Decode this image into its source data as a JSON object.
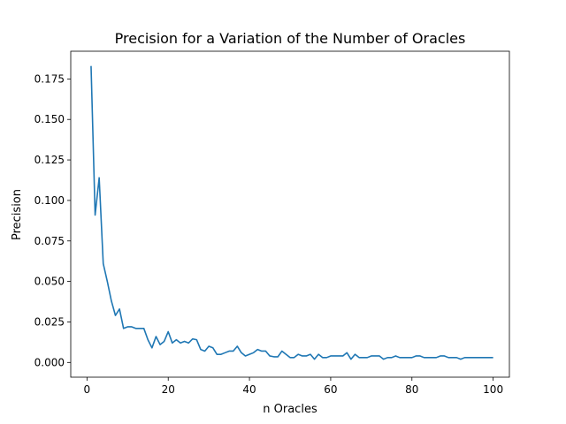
{
  "chart_data": {
    "type": "line",
    "title": "Precision for a Variation of the Number of Oracles",
    "xlabel": "n Oracles",
    "ylabel": "Precision",
    "xlim": [
      -4.0,
      104.0
    ],
    "ylim": [
      -0.0091,
      0.1921
    ],
    "xticks": [
      0,
      20,
      40,
      60,
      80,
      100
    ],
    "xtick_labels": [
      "0",
      "20",
      "40",
      "60",
      "80",
      "100"
    ],
    "yticks": [
      0.0,
      0.025,
      0.05,
      0.075,
      0.1,
      0.125,
      0.15,
      0.175
    ],
    "ytick_labels": [
      "0.000",
      "0.025",
      "0.050",
      "0.075",
      "0.100",
      "0.125",
      "0.150",
      "0.175"
    ],
    "grid": false,
    "legend": "none",
    "series_color": "#1f77b4",
    "x": [
      1,
      2,
      3,
      4,
      5,
      6,
      7,
      8,
      9,
      10,
      11,
      12,
      13,
      14,
      15,
      16,
      17,
      18,
      19,
      20,
      21,
      22,
      23,
      24,
      25,
      26,
      27,
      28,
      29,
      30,
      31,
      32,
      33,
      34,
      35,
      36,
      37,
      38,
      39,
      40,
      41,
      42,
      43,
      44,
      45,
      46,
      47,
      48,
      49,
      50,
      51,
      52,
      53,
      54,
      55,
      56,
      57,
      58,
      59,
      60,
      61,
      62,
      63,
      64,
      65,
      66,
      67,
      68,
      69,
      70,
      71,
      72,
      73,
      74,
      75,
      76,
      77,
      78,
      79,
      80,
      81,
      82,
      83,
      84,
      85,
      86,
      87,
      88,
      89,
      90,
      91,
      92,
      93,
      94,
      95,
      96,
      97,
      98,
      99,
      100
    ],
    "y": [
      0.183,
      0.091,
      0.114,
      0.061,
      0.05,
      0.038,
      0.029,
      0.033,
      0.021,
      0.022,
      0.022,
      0.021,
      0.021,
      0.021,
      0.014,
      0.009,
      0.016,
      0.011,
      0.013,
      0.019,
      0.012,
      0.014,
      0.012,
      0.013,
      0.012,
      0.0145,
      0.014,
      0.008,
      0.007,
      0.01,
      0.009,
      0.005,
      0.005,
      0.006,
      0.007,
      0.007,
      0.01,
      0.006,
      0.004,
      0.005,
      0.006,
      0.008,
      0.007,
      0.007,
      0.004,
      0.0035,
      0.0035,
      0.007,
      0.005,
      0.003,
      0.003,
      0.005,
      0.004,
      0.004,
      0.005,
      0.002,
      0.005,
      0.003,
      0.003,
      0.004,
      0.004,
      0.004,
      0.004,
      0.006,
      0.002,
      0.005,
      0.003,
      0.003,
      0.003,
      0.004,
      0.004,
      0.004,
      0.002,
      0.003,
      0.003,
      0.004,
      0.003,
      0.003,
      0.003,
      0.003,
      0.004,
      0.004,
      0.003,
      0.003,
      0.003,
      0.003,
      0.004,
      0.004,
      0.003,
      0.003,
      0.003,
      0.002,
      0.003,
      0.003,
      0.003,
      0.003,
      0.003,
      0.003,
      0.003,
      0.003
    ]
  }
}
